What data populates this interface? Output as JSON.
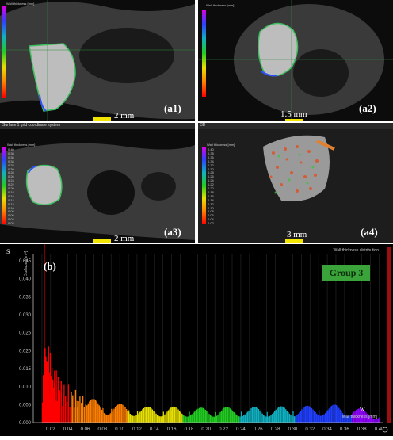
{
  "panels": {
    "a1": {
      "label": "(a1)",
      "scale_text": "2 mm",
      "legend_title": "Wall thickness [mm]"
    },
    "a2": {
      "label": "(a2)",
      "scale_text": "1.5 mm",
      "legend_title": "Wall thickness [mm]"
    },
    "a3": {
      "label": "(a3)",
      "scale_text": "2 mm",
      "window_title": "Surface 1 grid coordinate system",
      "legend_title": "Wall thickness [mm]",
      "legend_ticks": [
        "0.40",
        "0.38",
        "0.36",
        "0.34",
        "0.32",
        "0.30",
        "0.28",
        "0.26",
        "0.24",
        "0.22",
        "0.20",
        "0.18",
        "0.16",
        "0.14",
        "0.12",
        "0.10",
        "0.08",
        "0.06",
        "0.04",
        "0.02"
      ]
    },
    "a4": {
      "label": "(a4)",
      "scale_text": "3 mm",
      "window_title": "3D",
      "legend_title": "Wall thickness [mm]",
      "legend_ticks": [
        "0.40",
        "0.38",
        "0.36",
        "0.34",
        "0.32",
        "0.30",
        "0.28",
        "0.26",
        "0.24",
        "0.22",
        "0.20",
        "0.18",
        "0.16",
        "0.14",
        "0.12",
        "0.10",
        "0.08",
        "0.06",
        "0.04",
        "0.02"
      ]
    }
  },
  "histogram": {
    "label": "(b)",
    "group_badge": "Group 3",
    "title": "Wall thickness distribution",
    "y_axis_letter": "S",
    "x_axis_letter": "W",
    "badge_color": "#3aa33a"
  },
  "chart_data": {
    "type": "bar",
    "title": "Wall thickness distribution",
    "xlabel": "Wall thickness [mm]",
    "ylabel": "Surface [mm²]",
    "xlim": [
      0.0,
      0.405
    ],
    "ylim": [
      0.0,
      0.047
    ],
    "x_ticks": [
      "0.02",
      "0.04",
      "0.06",
      "0.08",
      "0.10",
      "0.12",
      "0.14",
      "0.16",
      "0.18",
      "0.20",
      "0.22",
      "0.24",
      "0.26",
      "0.28",
      "0.30",
      "0.32",
      "0.34",
      "0.36",
      "0.38",
      "0.40"
    ],
    "y_ticks": [
      "0.000",
      "0.005",
      "0.010",
      "0.015",
      "0.020",
      "0.025",
      "0.030",
      "0.035",
      "0.040",
      "0.045"
    ],
    "colormap": [
      "#ff0000",
      "#ff7f00",
      "#e8e000",
      "#22cc22",
      "#10b0c0",
      "#2040ff",
      "#9000ff"
    ],
    "x": [
      0.01,
      0.012,
      0.014,
      0.016,
      0.018,
      0.02,
      0.022,
      0.024,
      0.026,
      0.028,
      0.03,
      0.035,
      0.04,
      0.045,
      0.05,
      0.055,
      0.06,
      0.07,
      0.08,
      0.09,
      0.1,
      0.11,
      0.12,
      0.13,
      0.14,
      0.15,
      0.16,
      0.17,
      0.18,
      0.19,
      0.2,
      0.21,
      0.22,
      0.23,
      0.24,
      0.25,
      0.26,
      0.27,
      0.28,
      0.29,
      0.3,
      0.31,
      0.32,
      0.33,
      0.34,
      0.35,
      0.36,
      0.37,
      0.38,
      0.39,
      0.4
    ],
    "values": [
      0.004,
      0.044,
      0.016,
      0.017,
      0.014,
      0.013,
      0.012,
      0.011,
      0.01,
      0.01,
      0.009,
      0.008,
      0.0075,
      0.0068,
      0.006,
      0.0055,
      0.005,
      0.0045,
      0.004,
      0.0038,
      0.0036,
      0.0034,
      0.0032,
      0.003,
      0.0032,
      0.003,
      0.0031,
      0.0029,
      0.003,
      0.0028,
      0.003,
      0.0029,
      0.0031,
      0.0028,
      0.003,
      0.0029,
      0.0031,
      0.0029,
      0.003,
      0.0032,
      0.0031,
      0.0033,
      0.0032,
      0.0034,
      0.0033,
      0.0035,
      0.0032,
      0.003,
      0.0026,
      0.0022,
      0.0015
    ]
  }
}
